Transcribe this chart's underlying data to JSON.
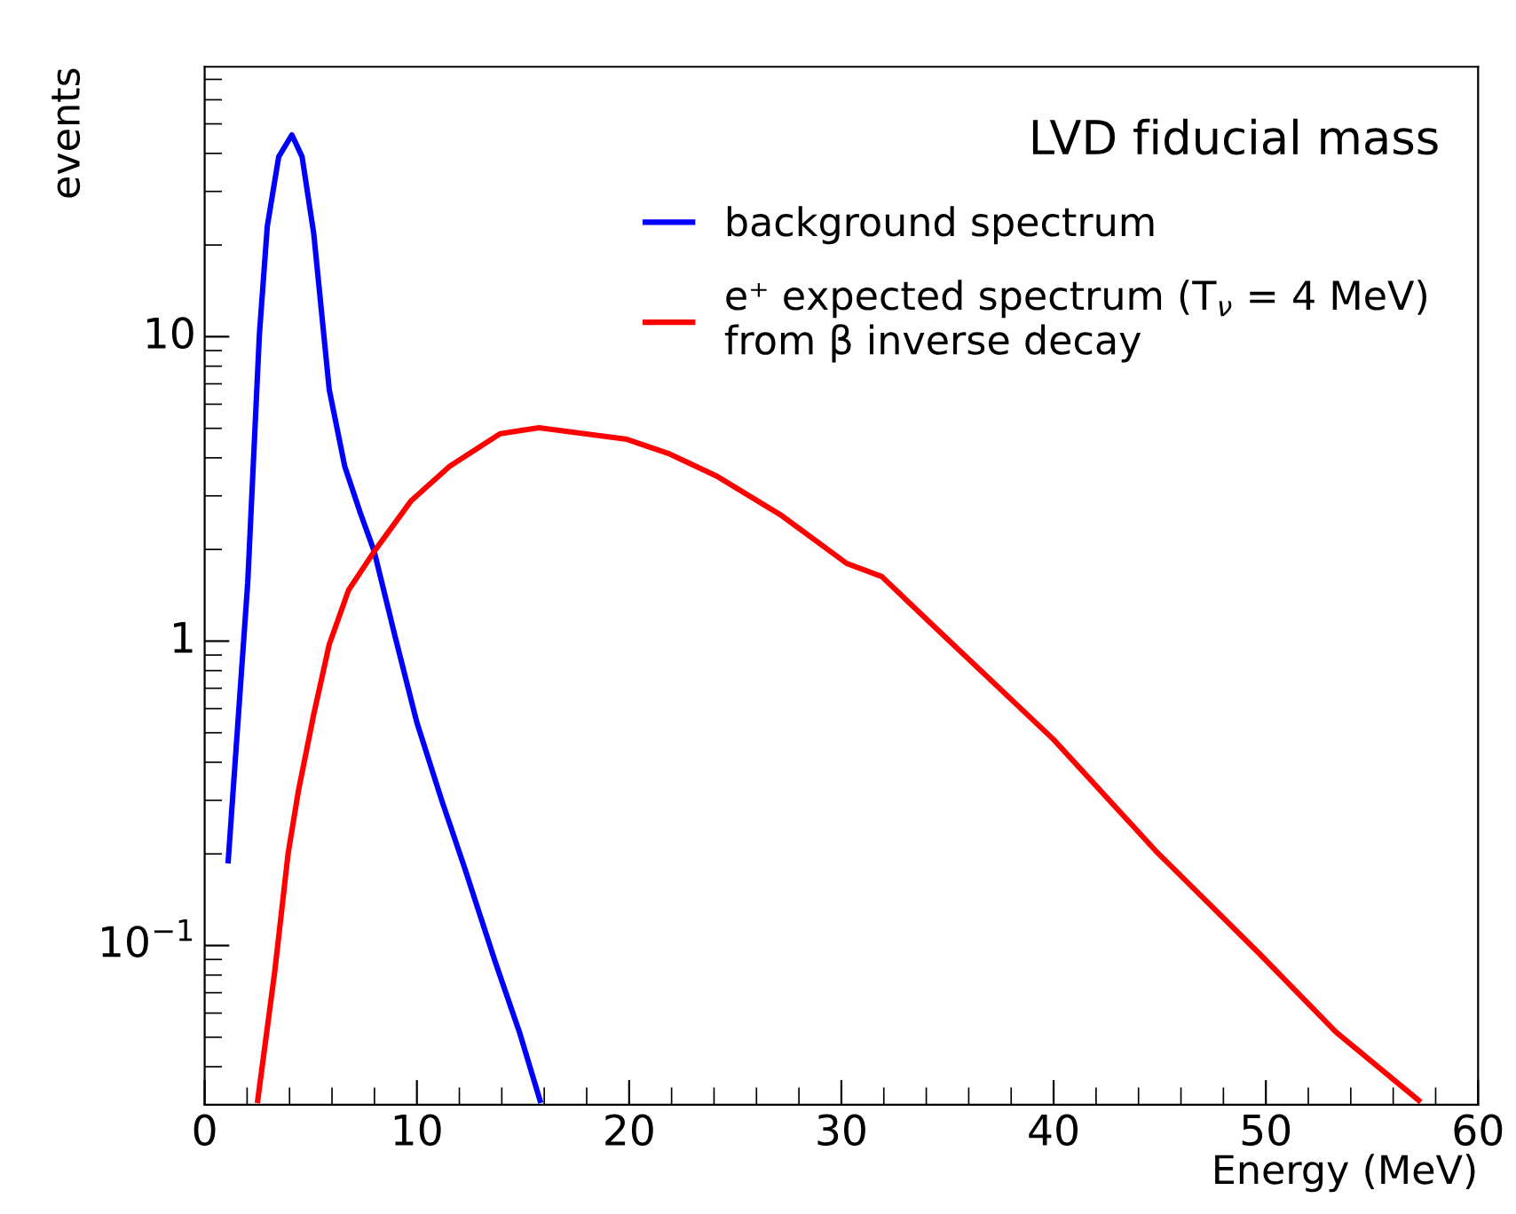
{
  "chart_data": {
    "type": "line",
    "title": "LVD fiducial mass",
    "xlabel": "Energy (MeV)",
    "ylabel": "events",
    "log": "y",
    "xlim": [
      0,
      60
    ],
    "xticks": [
      0,
      10,
      20,
      30,
      40,
      50,
      60
    ],
    "ylim": [
      0.03,
      77
    ],
    "yticks": [
      {
        "value": 0.1,
        "label": "10$^{−1}$"
      },
      1,
      10
    ],
    "grid": false,
    "legend": "top right",
    "marker": "none",
    "line_style": "solid",
    "series": [
      {
        "name": "background spectrum",
        "color": "#0000ff",
        "x": [
          1.11,
          2.03,
          2.58,
          2.95,
          3.49,
          4.11,
          4.59,
          5.14,
          5.87,
          6.6,
          7.33,
          7.99,
          8.98,
          10.0,
          11.17,
          12.27,
          13.7,
          14.83,
          15.8
        ],
        "values": [
          0.19,
          1.56,
          10.2,
          23,
          39,
          46,
          39,
          21.8,
          6.7,
          3.75,
          2.64,
          1.97,
          1.03,
          0.54,
          0.3,
          0.178,
          0.088,
          0.052,
          0.031
        ]
      },
      {
        "name": "e⁺ expected spectrum (T$_{ν}$ = 4 MeV)\nfrom β inverse decay",
        "color": "#ff0000",
        "x": [
          2.5,
          3.31,
          3.93,
          4.41,
          5.14,
          5.87,
          6.78,
          7.99,
          9.71,
          11.54,
          13.92,
          15.75,
          19.9,
          21.9,
          24.1,
          27.2,
          30.25,
          31.9,
          35.1,
          40.0,
          44.8,
          49.7,
          53.3,
          57.2
        ],
        "values": [
          0.031,
          0.083,
          0.2,
          0.32,
          0.575,
          0.975,
          1.47,
          1.97,
          2.88,
          3.75,
          4.8,
          5.02,
          4.6,
          4.12,
          3.49,
          2.58,
          1.8,
          1.63,
          1.0,
          0.475,
          0.205,
          0.094,
          0.052,
          0.031
        ]
      }
    ]
  }
}
